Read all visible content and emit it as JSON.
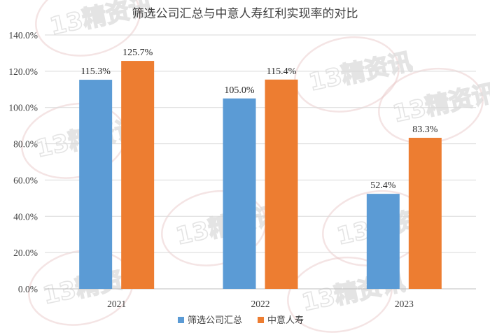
{
  "chart_data": {
    "type": "bar",
    "title": "筛选公司汇总与中意人寿红利实现率的对比",
    "categories": [
      "2021",
      "2022",
      "2023"
    ],
    "series": [
      {
        "name": "筛选公司汇总",
        "values": [
          115.3,
          105.0,
          52.4
        ],
        "labels": [
          "115.3%",
          "105.0%",
          "52.4%"
        ],
        "color": "#5B9BD5"
      },
      {
        "name": "中意人寿",
        "values": [
          125.7,
          115.4,
          83.3
        ],
        "labels": [
          "125.7%",
          "115.4%",
          "83.3%"
        ],
        "color": "#ED7D31"
      }
    ],
    "ylim": [
      0,
      140
    ],
    "yticks": [
      0,
      20,
      40,
      60,
      80,
      100,
      120,
      140
    ],
    "ytick_labels": [
      "0.0%",
      "20.0%",
      "40.0%",
      "60.0%",
      "80.0%",
      "100.0%",
      "120.0%",
      "140.0%"
    ],
    "grid": true,
    "legend_position": "bottom"
  },
  "watermark": {
    "text": "13精资讯",
    "icon": "watermark-logo-icon"
  },
  "colors": {
    "grid": "#d9d9d9",
    "axis": "#bfbfbf",
    "text": "#404040"
  }
}
